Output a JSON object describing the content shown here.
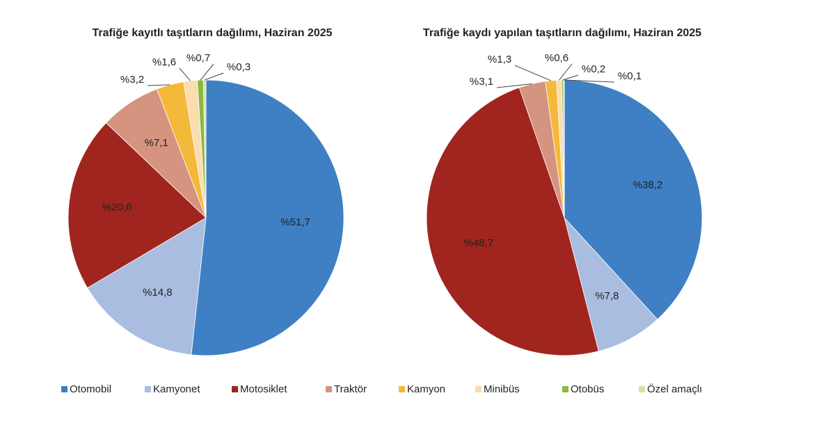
{
  "chart_data": [
    {
      "type": "pie",
      "title": "Trafiğe kayıtlı taşıtların dağılımı, Haziran 2025",
      "values": [
        51.7,
        14.8,
        20.6,
        7.1,
        3.2,
        1.6,
        0.7,
        0.3
      ],
      "value_labels": [
        "%51,7",
        "%14,8",
        "%20,6",
        "%7,1",
        "%3,2",
        "%1,6",
        "%0,7",
        "%0,3"
      ]
    },
    {
      "type": "pie",
      "title": "Trafiğe kaydı yapılan taşıtların dağılımı, Haziran 2025",
      "values": [
        38.2,
        7.8,
        48.7,
        3.1,
        1.3,
        0.6,
        0.2,
        0.1
      ],
      "value_labels": [
        "%38,2",
        "%7,8",
        "%48,7",
        "%3,1",
        "%1,3",
        "%0,6",
        "%0,2",
        "%0,1"
      ]
    }
  ],
  "legend": {
    "categories": [
      "Otomobil",
      "Kamyonet",
      "Motosiklet",
      "Traktör",
      "Kamyon",
      "Minibüs",
      "Otobüs",
      "Özel amaçlı"
    ],
    "colors": [
      "#3f7fc4",
      "#a8bde0",
      "#a0251f",
      "#d49480",
      "#f4b93b",
      "#fbdcb0",
      "#8ab840",
      "#d5e3a6"
    ]
  }
}
